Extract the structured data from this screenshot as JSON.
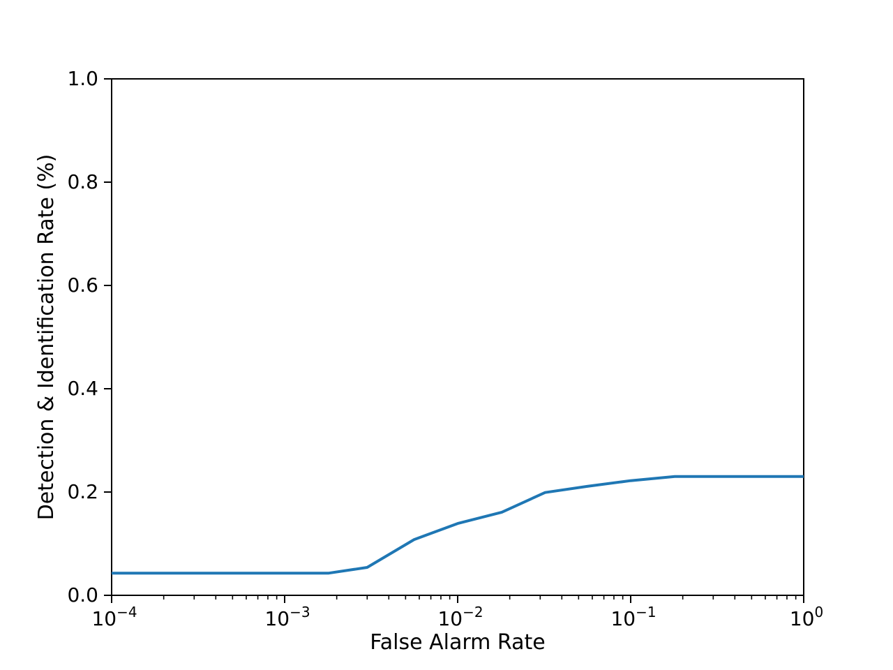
{
  "figure": {
    "background": "#ffffff"
  },
  "chart_data": {
    "type": "line",
    "title": "",
    "xlabel": "False Alarm Rate",
    "ylabel": "Detection & Identification Rate (%)",
    "x_scale": "log",
    "xlim": [
      0.0001,
      1.0
    ],
    "ylim": [
      0.0,
      1.0
    ],
    "grid": false,
    "legend": "none",
    "axis_color": "#000000",
    "x_tick_exponents": [
      -4,
      -3,
      -2,
      -1,
      0
    ],
    "x_tick_base": "10",
    "y_tick_values": [
      0.0,
      0.2,
      0.4,
      0.6,
      0.8,
      1.0
    ],
    "y_tick_labels": [
      "0.0",
      "0.2",
      "0.4",
      "0.6",
      "0.8",
      "1.0"
    ],
    "series": [
      {
        "color": "#1f77b4",
        "line_width": 4,
        "x": [
          0.0001,
          0.0018,
          0.003,
          0.0056,
          0.01,
          0.018,
          0.032,
          0.056,
          0.1,
          0.18,
          1.0
        ],
        "y": [
          0.043,
          0.043,
          0.054,
          0.108,
          0.139,
          0.161,
          0.199,
          0.211,
          0.222,
          0.23,
          0.23
        ]
      }
    ]
  }
}
